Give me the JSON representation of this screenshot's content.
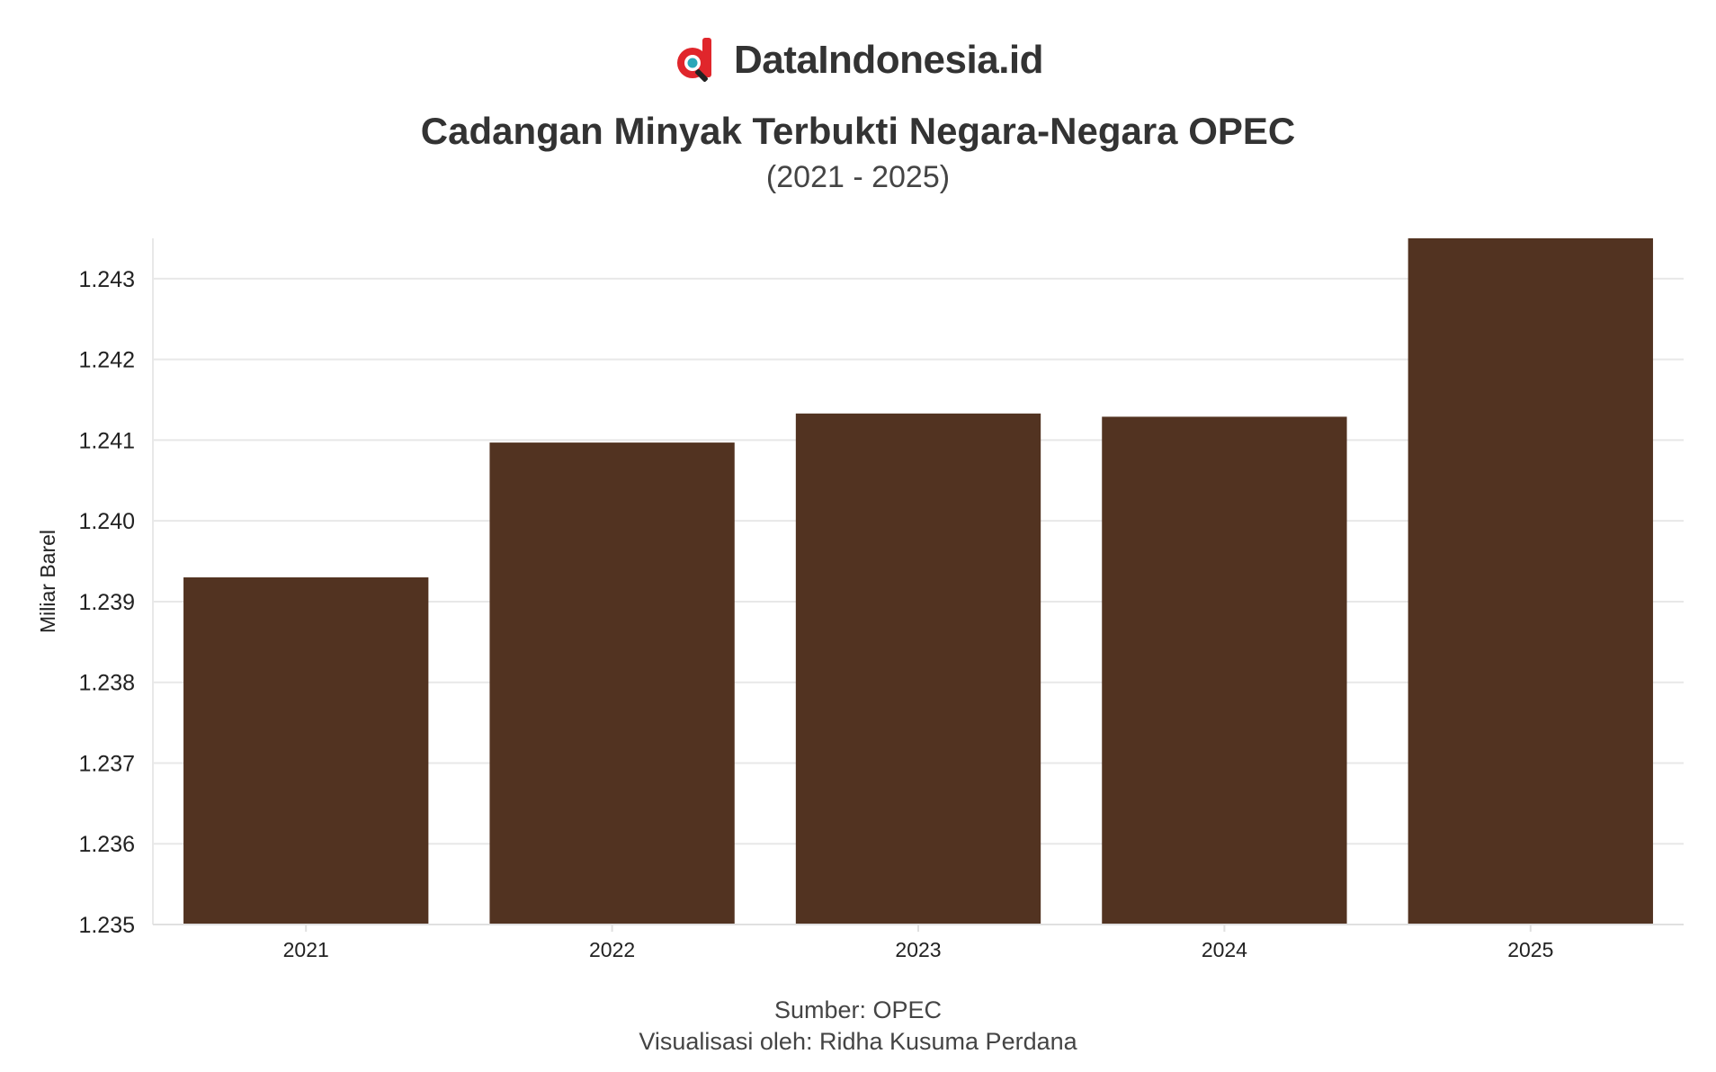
{
  "brand": {
    "name": "DataIndonesia.id",
    "logo_icon": "datamag-d-logo-icon"
  },
  "chart_data": {
    "type": "bar",
    "title": "Cadangan Minyak Terbukti Negara-Negara OPEC",
    "subtitle": "(2021 - 2025)",
    "xlabel": "",
    "ylabel": "Miliar Barel",
    "categories": [
      "2021",
      "2022",
      "2023",
      "2024",
      "2025"
    ],
    "values": [
      1.2393,
      1.24097,
      1.24133,
      1.24129,
      1.2435
    ],
    "ylim": [
      1.235,
      1.2435
    ],
    "yticks": [
      "1.235",
      "1.236",
      "1.237",
      "1.238",
      "1.239",
      "1.240",
      "1.241",
      "1.242",
      "1.243"
    ],
    "grid": true,
    "bar_color": "#523321"
  },
  "footer": {
    "source": "Sumber: OPEC",
    "credit": "Visualisasi oleh: Ridha Kusuma Perdana"
  }
}
